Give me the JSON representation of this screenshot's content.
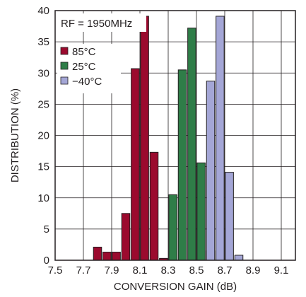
{
  "chart_data": {
    "type": "bar",
    "xlabel": "CONVERSION GAIN (dB)",
    "ylabel": "DISTRIBUTION (%)",
    "annotation": "RF = 1950MHz",
    "xlim": [
      7.5,
      9.2
    ],
    "ylim": [
      0,
      40
    ],
    "x_ticks": [
      "7.5",
      "7.7",
      "7.9",
      "8.1",
      "8.3",
      "8.5",
      "8.7",
      "8.9",
      "9.1"
    ],
    "y_ticks": [
      "0",
      "5",
      "10",
      "15",
      "20",
      "25",
      "30",
      "35",
      "40"
    ],
    "grid": true,
    "legend_position": "top-left",
    "bin_width": 0.067,
    "series": [
      {
        "name": "85°C",
        "color": "#9b0a2e",
        "x": [
          7.733,
          7.8,
          7.867,
          7.933,
          8.0,
          8.067,
          8.133,
          8.2,
          8.267,
          8.333,
          8.4,
          8.467,
          8.533,
          8.6,
          8.667,
          8.733,
          8.8,
          8.867,
          8.933,
          9.0,
          9.067
        ],
        "values": [
          0,
          2.1,
          1.3,
          1.3,
          7.5,
          30.7,
          39.1,
          17.3,
          0.3,
          0,
          0,
          0,
          0,
          0,
          0,
          0,
          0,
          0,
          0,
          0,
          0
        ]
      },
      {
        "name": "25°C",
        "color": "#2f7d48",
        "x": [
          7.733,
          7.8,
          7.867,
          7.933,
          8.0,
          8.067,
          8.133,
          8.2,
          8.267,
          8.333,
          8.4,
          8.467,
          8.533,
          8.6,
          8.667,
          8.733,
          8.8,
          8.867,
          8.933,
          9.0,
          9.067
        ],
        "values": [
          0,
          0,
          0,
          0,
          0,
          0,
          0,
          0,
          0,
          10.5,
          30.5,
          37.2,
          15.6,
          1.5,
          0,
          0,
          0,
          0,
          0,
          0,
          0
        ]
      },
      {
        "name": "−40°C",
        "color": "#a4a6d6",
        "x": [
          7.733,
          7.8,
          7.867,
          7.933,
          8.0,
          8.067,
          8.133,
          8.2,
          8.267,
          8.333,
          8.4,
          8.467,
          8.533,
          8.6,
          8.667,
          8.733,
          8.8,
          8.867,
          8.933,
          9.0,
          9.067
        ],
        "values": [
          0,
          0,
          0,
          0,
          0,
          0,
          0,
          0,
          0,
          0,
          0,
          0,
          0,
          28.7,
          39.1,
          14.1,
          0.8,
          0,
          0,
          0,
          0
        ]
      }
    ]
  }
}
